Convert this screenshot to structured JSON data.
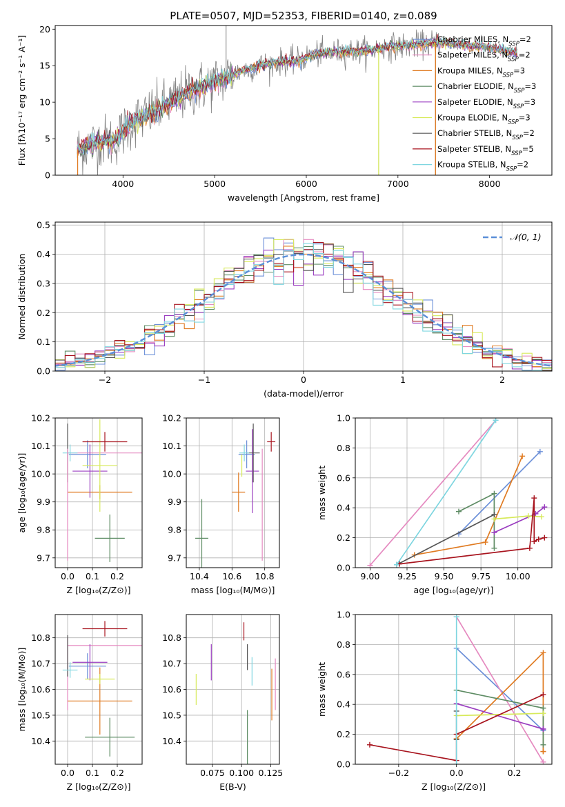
{
  "figure": {
    "title": "PLATE=0507, MJD=52353, FIBERID=0140, z=0.089",
    "colors": {
      "Chabrier MILES": "#6b8fd8",
      "Salpeter MILES": "#e58ac0",
      "Kroupa MILES": "#e07b22",
      "Chabrier ELODIE": "#5e8c64",
      "Salpeter ELODIE": "#9a3dc0",
      "Kroupa ELODIE": "#d7ea5a",
      "Chabrier STELIB": "#555555",
      "Salpeter STELIB": "#a8141e",
      "Kroupa STELIB": "#7fd6e0"
    }
  },
  "chart_data": [
    {
      "id": "spectrum",
      "type": "line",
      "xlabel": "wavelength [Angstrom, rest frame]",
      "ylabel": "Flux [fλ10⁻¹⁷ erg cm⁻² s⁻¹ A⁻¹]",
      "xlim": [
        3260,
        8680
      ],
      "ylim": [
        0,
        20.5
      ],
      "xticks": [
        4000,
        5000,
        6000,
        7000,
        8000
      ],
      "yticks": [
        0,
        5,
        10,
        15,
        20
      ],
      "legend_position": "top-right",
      "legend": [
        {
          "model": "Chabrier MILES",
          "nssp": "2"
        },
        {
          "model": "Salpeter MILES",
          "nssp": "2"
        },
        {
          "model": "Kroupa MILES",
          "nssp": "3"
        },
        {
          "model": "Chabrier ELODIE",
          "nssp": "3"
        },
        {
          "model": "Salpeter ELODIE",
          "nssp": "3"
        },
        {
          "model": "Kroupa ELODIE",
          "nssp": "3"
        },
        {
          "model": "Chabrier STELIB",
          "nssp": "2"
        },
        {
          "model": "Salpeter STELIB",
          "nssp": "5"
        },
        {
          "model": "Kroupa STELIB",
          "nssp": "2"
        }
      ],
      "continuum": {
        "x": [
          3500,
          3650,
          3800,
          3900,
          4000,
          4100,
          4300,
          4500,
          4700,
          4900,
          5100,
          5300,
          5500,
          5700,
          5900,
          6100,
          6300,
          6500,
          6700,
          6900,
          7100,
          7300,
          7500,
          7700,
          7900,
          8100,
          8300
        ],
        "y": [
          3.5,
          4.2,
          4.8,
          4.5,
          6.0,
          7.2,
          8.5,
          9.8,
          11.3,
          12.3,
          13.3,
          14.3,
          15.0,
          15.5,
          15.6,
          16.6,
          16.8,
          17.0,
          17.1,
          17.6,
          17.7,
          18.0,
          18.2,
          17.8,
          17.6,
          17.2,
          16.7
        ]
      },
      "data_spikes": [
        {
          "x": 5125,
          "y": 20.6
        },
        {
          "x": 6790,
          "y": 0
        },
        {
          "x": 7410,
          "y": 0
        }
      ]
    },
    {
      "id": "residuals",
      "type": "histogram",
      "xlabel": "(data-model)/error",
      "ylabel": "Normed distribution",
      "xlim": [
        -2.5,
        2.5
      ],
      "ylim": [
        0,
        0.51
      ],
      "xticks": [
        -2,
        -1,
        0,
        1,
        2
      ],
      "yticks": [
        0.0,
        0.1,
        0.2,
        0.3,
        0.4,
        0.5
      ],
      "grid": true,
      "legend_position": "top-right",
      "curve_label": "𝒩(0, 1)",
      "curve_color": "#5b8fd8"
    },
    {
      "id": "age-vs-Z",
      "type": "scatter",
      "xlabel": "Z [log₁₀(Z/Z⊙)]",
      "ylabel": "age  [log₁₀(age/yr)]",
      "xlim": [
        -0.05,
        0.3
      ],
      "ylim": [
        9.665,
        10.2
      ],
      "xticks": [
        0.0,
        0.1,
        0.2
      ],
      "yticks": [
        9.7,
        9.8,
        9.9,
        10.0,
        10.1,
        10.2
      ],
      "grid": true,
      "points": [
        {
          "model": "Chabrier MILES",
          "x": 0.08,
          "xerr": 0.075,
          "y": 10.07,
          "yerr": 0.05
        },
        {
          "model": "Salpeter MILES",
          "x": 0.15,
          "xerr": 0.15,
          "y": 10.075,
          "yerr": 0.0
        },
        {
          "model": "Kroupa MILES",
          "x": 0.13,
          "xerr": 0.13,
          "y": 9.935,
          "yerr": 0.025
        },
        {
          "model": "Chabrier ELODIE",
          "x": 0.17,
          "xerr": 0.06,
          "y": 9.77,
          "yerr": 0.085
        },
        {
          "model": "Salpeter ELODIE",
          "x": 0.09,
          "xerr": 0.07,
          "y": 10.01,
          "yerr": 0.095
        },
        {
          "model": "Kroupa ELODIE",
          "x": 0.13,
          "xerr": 0.07,
          "y": 10.03,
          "yerr": 0.165
        },
        {
          "model": "Chabrier STELIB",
          "x": 0.0,
          "xerr": 0.0,
          "y": 10.075,
          "yerr": 0.105
        },
        {
          "model": "Salpeter STELIB",
          "x": 0.15,
          "xerr": 0.09,
          "y": 10.115,
          "yerr": 0.035
        },
        {
          "model": "Kroupa STELIB",
          "x": 0.01,
          "xerr": 0.03,
          "y": 10.075,
          "yerr": 0.03
        },
        {
          "model": "Salpeter MILES",
          "x": 0.0,
          "xerr": 0.0,
          "y": 9.89,
          "yerr": 0.2
        }
      ]
    },
    {
      "id": "age-vs-mass",
      "type": "scatter",
      "xlabel": "mass [log₁₀(M/M⊙)]",
      "ylabel": "",
      "xlim": [
        10.32,
        10.89
      ],
      "ylim": [
        9.665,
        10.2
      ],
      "xticks": [
        10.4,
        10.6,
        10.8
      ],
      "yticks": [
        9.7,
        9.8,
        9.9,
        10.0,
        10.1,
        10.2
      ],
      "grid": true,
      "points": [
        {
          "model": "Chabrier MILES",
          "x": 10.69,
          "xerr": 0.05,
          "y": 10.07,
          "yerr": 0.05
        },
        {
          "model": "Salpeter MILES",
          "x": 10.785,
          "xerr": 0.0,
          "y": 9.89,
          "yerr": 0.2
        },
        {
          "model": "Kroupa MILES",
          "x": 10.64,
          "xerr": 0.04,
          "y": 9.935,
          "yerr": 0.07
        },
        {
          "model": "Chabrier ELODIE",
          "x": 10.415,
          "xerr": 0.04,
          "y": 9.77,
          "yerr": 0.14
        },
        {
          "model": "Salpeter ELODIE",
          "x": 10.725,
          "xerr": 0.04,
          "y": 10.01,
          "yerr": 0.15
        },
        {
          "model": "Kroupa ELODIE",
          "x": 10.66,
          "xerr": 0.0,
          "y": 10.03,
          "yerr": 0.04
        },
        {
          "model": "Chabrier STELIB",
          "x": 10.73,
          "xerr": 0.04,
          "y": 10.075,
          "yerr": 0.105
        },
        {
          "model": "Salpeter STELIB",
          "x": 10.84,
          "xerr": 0.025,
          "y": 10.115,
          "yerr": 0.035
        },
        {
          "model": "Kroupa STELIB",
          "x": 10.675,
          "xerr": 0.03,
          "y": 10.075,
          "yerr": 0.03
        }
      ]
    },
    {
      "id": "weights-vs-age",
      "type": "line",
      "xlabel": "age  [log₁₀(age/yr)]",
      "ylabel": "mass weight",
      "xlim": [
        8.9,
        10.23
      ],
      "ylim": [
        0,
        1
      ],
      "xticks": [
        9.0,
        9.25,
        9.5,
        9.75,
        10.0
      ],
      "yticks": [
        0.0,
        0.2,
        0.4,
        0.6,
        0.8,
        1.0
      ],
      "grid": true,
      "series": [
        {
          "model": "Chabrier MILES",
          "x": [
            9.6,
            10.15
          ],
          "y": [
            0.225,
            0.775
          ]
        },
        {
          "model": "Salpeter MILES",
          "x": [
            9.0,
            9.85
          ],
          "y": [
            0.015,
            0.985
          ]
        },
        {
          "model": "Kroupa MILES",
          "x": [
            9.3,
            9.78,
            10.03
          ],
          "y": [
            0.085,
            0.17,
            0.745
          ]
        },
        {
          "model": "Chabrier ELODIE",
          "x": [
            9.6,
            9.84,
            9.84
          ],
          "y": [
            0.375,
            0.495,
            0.13
          ]
        },
        {
          "model": "Salpeter ELODIE",
          "x": [
            9.84,
            10.12,
            10.18
          ],
          "y": [
            0.235,
            0.36,
            0.405
          ]
        },
        {
          "model": "Kroupa ELODIE",
          "x": [
            9.84,
            10.07,
            10.16
          ],
          "y": [
            0.325,
            0.345,
            0.34
          ]
        },
        {
          "model": "Chabrier STELIB",
          "x": [
            9.18,
            9.84
          ],
          "y": [
            0.02,
            0.355
          ]
        },
        {
          "model": "Salpeter STELIB",
          "x": [
            9.2,
            10.08,
            10.11,
            10.11,
            10.14,
            10.18
          ],
          "y": [
            0.025,
            0.13,
            0.465,
            0.175,
            0.19,
            0.2
          ]
        },
        {
          "model": "Kroupa STELIB",
          "x": [
            9.18,
            9.85
          ],
          "y": [
            0.02,
            0.985
          ]
        }
      ]
    },
    {
      "id": "mass-vs-Z",
      "type": "scatter",
      "xlabel": "Z [log₁₀(Z/Z⊙)]",
      "ylabel": "mass [log₁₀(M/M⊙)]",
      "xlim": [
        -0.05,
        0.3
      ],
      "ylim": [
        10.31,
        10.89
      ],
      "xticks": [
        0.0,
        0.1,
        0.2
      ],
      "yticks": [
        10.4,
        10.5,
        10.6,
        10.7,
        10.8
      ],
      "grid": true,
      "points": [
        {
          "model": "Chabrier MILES",
          "x": 0.08,
          "xerr": 0.075,
          "y": 10.69,
          "yerr": 0.05
        },
        {
          "model": "Salpeter MILES",
          "x": 0.15,
          "xerr": 0.15,
          "y": 10.77,
          "yerr": 0.0
        },
        {
          "model": "Salpeter MILES",
          "x": 0.0,
          "xerr": 0.0,
          "y": 10.66,
          "yerr": 0.14
        },
        {
          "model": "Kroupa MILES",
          "x": 0.13,
          "xerr": 0.13,
          "y": 10.555,
          "yerr": 0.13
        },
        {
          "model": "Chabrier ELODIE",
          "x": 0.17,
          "xerr": 0.1,
          "y": 10.415,
          "yerr": 0.075
        },
        {
          "model": "Salpeter ELODIE",
          "x": 0.09,
          "xerr": 0.07,
          "y": 10.705,
          "yerr": 0.07
        },
        {
          "model": "Kroupa ELODIE",
          "x": 0.13,
          "xerr": 0.06,
          "y": 10.64,
          "yerr": 0.02
        },
        {
          "model": "Chabrier STELIB",
          "x": 0.0,
          "xerr": 0.0,
          "y": 10.73,
          "yerr": 0.08
        },
        {
          "model": "Salpeter STELIB",
          "x": 0.15,
          "xerr": 0.09,
          "y": 10.835,
          "yerr": 0.03
        },
        {
          "model": "Kroupa STELIB",
          "x": 0.01,
          "xerr": 0.03,
          "y": 10.675,
          "yerr": 0.03
        }
      ]
    },
    {
      "id": "EBV",
      "type": "scatter",
      "xlabel": "E(B-V)",
      "ylabel": "",
      "xlim": [
        0.0525,
        0.1325
      ],
      "ylim": [
        10.31,
        10.89
      ],
      "xticks": [
        0.075,
        0.1,
        0.125
      ],
      "xtick_labels": [
        "0.075",
        "0.100",
        "0.125"
      ],
      "yticks": [
        10.4,
        10.5,
        10.6,
        10.7,
        10.8
      ],
      "grid": true,
      "points": [
        {
          "model": "Kroupa ELODIE",
          "x": 0.061,
          "y": 10.6,
          "yerr": 0.06
        },
        {
          "model": "Salpeter ELODIE",
          "x": 0.074,
          "y": 10.705,
          "yerr": 0.07
        },
        {
          "model": "Salpeter STELIB",
          "x": 0.102,
          "y": 10.825,
          "yerr": 0.035
        },
        {
          "model": "Chabrier ELODIE",
          "x": 0.105,
          "y": 10.415,
          "yerr": 0.105
        },
        {
          "model": "Chabrier STELIB",
          "x": 0.105,
          "y": 10.725,
          "yerr": 0.05
        },
        {
          "model": "Kroupa STELIB",
          "x": 0.109,
          "y": 10.67,
          "yerr": 0.055
        },
        {
          "model": "Kroupa MILES",
          "x": 0.126,
          "y": 10.58,
          "yerr": 0.1
        },
        {
          "model": "Salpeter MILES",
          "x": 0.129,
          "y": 10.62,
          "yerr": 0.1
        }
      ]
    },
    {
      "id": "weights-vs-Z",
      "type": "line",
      "xlabel": "Z [log₁₀(Z/Z⊙)]",
      "ylabel": "mass weight",
      "xlim": [
        -0.35,
        0.33
      ],
      "ylim": [
        0,
        1
      ],
      "xticks": [
        -0.2,
        0.0,
        0.2
      ],
      "xtick_labels": [
        "−0.2",
        "0.0",
        "0.2"
      ],
      "yticks": [
        0.0,
        0.2,
        0.4,
        0.6,
        0.8,
        1.0
      ],
      "grid": true,
      "series": [
        {
          "model": "Chabrier MILES",
          "x": [
            0.0,
            0.3
          ],
          "y": [
            0.775,
            0.225
          ]
        },
        {
          "model": "Salpeter MILES",
          "x": [
            0.0,
            0.3
          ],
          "y": [
            0.985,
            0.015
          ]
        },
        {
          "model": "Kroupa MILES",
          "x": [
            0.0,
            0.3,
            0.3,
            0.3
          ],
          "y": [
            0.17,
            0.745,
            0.085,
            0.085
          ]
        },
        {
          "model": "Chabrier ELODIE",
          "x": [
            0.0,
            0.3,
            0.3
          ],
          "y": [
            0.495,
            0.375,
            0.13
          ]
        },
        {
          "model": "Salpeter ELODIE",
          "x": [
            0.0,
            0.3,
            0.3
          ],
          "y": [
            0.405,
            0.235,
            0.235
          ]
        },
        {
          "model": "Kroupa ELODIE",
          "x": [
            0.0,
            0.3
          ],
          "y": [
            0.325,
            0.34
          ]
        },
        {
          "model": "Chabrier STELIB",
          "x": [
            0.0,
            0.0
          ],
          "y": [
            0.355,
            0.165
          ]
        },
        {
          "model": "Salpeter STELIB",
          "x": [
            -0.3,
            0.0,
            0.0,
            0.3
          ],
          "y": [
            0.13,
            0.025,
            0.2,
            0.465
          ]
        },
        {
          "model": "Kroupa STELIB",
          "x": [
            0.0,
            0.0
          ],
          "y": [
            0.985,
            0.0
          ]
        }
      ]
    }
  ]
}
